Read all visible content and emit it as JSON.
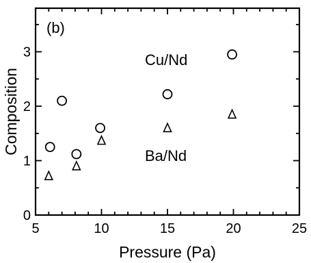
{
  "chart_data": {
    "type": "scatter",
    "panel_label": "(b)",
    "xlabel": "Pressure (Pa)",
    "ylabel": "Composition",
    "xlim": [
      5,
      25
    ],
    "ylim": [
      0,
      3.8
    ],
    "xticks": [
      5,
      10,
      15,
      20,
      25
    ],
    "yticks": [
      0,
      1,
      2,
      3
    ],
    "series": [
      {
        "name": "Cu/Nd",
        "marker": "circle",
        "points": [
          {
            "x": 6.1,
            "y": 1.25
          },
          {
            "x": 7.0,
            "y": 2.1
          },
          {
            "x": 8.1,
            "y": 1.12
          },
          {
            "x": 9.9,
            "y": 1.6
          },
          {
            "x": 15.0,
            "y": 2.22
          },
          {
            "x": 19.9,
            "y": 2.95
          }
        ]
      },
      {
        "name": "Ba/Nd",
        "marker": "triangle",
        "points": [
          {
            "x": 6.0,
            "y": 0.72
          },
          {
            "x": 8.1,
            "y": 0.9
          },
          {
            "x": 10.0,
            "y": 1.37
          },
          {
            "x": 15.0,
            "y": 1.6
          },
          {
            "x": 19.9,
            "y": 1.85
          }
        ]
      }
    ],
    "annotations": [
      "Cu/Nd",
      "Ba/Nd"
    ]
  }
}
